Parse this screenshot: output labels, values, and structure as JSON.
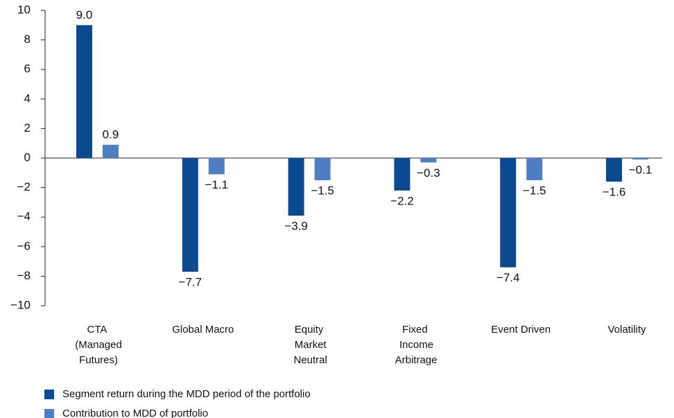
{
  "chart_data": {
    "type": "bar",
    "categories": [
      "CTA (Managed Futures)",
      "Global Macro",
      "Equity Market Neutral",
      "Fixed Income Arbitrage",
      "Event Driven",
      "Volatility"
    ],
    "series": [
      {
        "name": "Segment return during the MDD period of the portfolio",
        "color": "#0b4a91",
        "values": [
          9.0,
          -7.7,
          -3.9,
          -2.2,
          -7.4,
          -1.6
        ],
        "value_labels": [
          "9.0",
          "−7.7",
          "−3.9",
          "−2.2",
          "−7.4",
          "−1.6"
        ]
      },
      {
        "name": "Contribution to MDD of portfolio",
        "color": "#4f7ec3",
        "values": [
          0.9,
          -1.1,
          -1.5,
          -0.3,
          -1.5,
          -0.1
        ],
        "value_labels": [
          "0.9",
          "−1.1",
          "−1.5",
          "−0.3",
          "−1.5",
          "−0.1"
        ]
      }
    ],
    "ylim": [
      -10,
      10
    ],
    "yticks": [
      {
        "value": -10,
        "label": "−10"
      },
      {
        "value": -8,
        "label": "−8"
      },
      {
        "value": -6,
        "label": "−6"
      },
      {
        "value": -4,
        "label": "−4"
      },
      {
        "value": -2,
        "label": "−2"
      },
      0,
      2,
      4,
      6,
      8,
      10
    ],
    "legend": "bottom-left"
  }
}
